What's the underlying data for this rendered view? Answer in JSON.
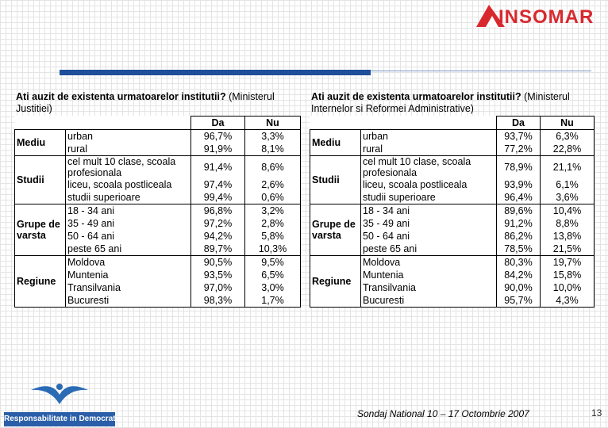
{
  "header": {
    "logo": "INSOMAR"
  },
  "tables": [
    {
      "question": "Ati auzit de existenta urmatoarelor institutii?",
      "institution": "(Ministerul Justitiei)",
      "columns": [
        "Da",
        "Nu"
      ],
      "groups": [
        {
          "name": "Mediu",
          "rows": [
            {
              "label": "urban",
              "values": [
                "96,7%",
                "3,3%"
              ]
            },
            {
              "label": "rural",
              "values": [
                "91,9%",
                "8,1%"
              ]
            }
          ]
        },
        {
          "name": "Studii",
          "rows": [
            {
              "label": "cel mult 10 clase, scoala profesionala",
              "values": [
                "91,4%",
                "8,6%"
              ]
            },
            {
              "label": "liceu, scoala postliceala",
              "values": [
                "97,4%",
                "2,6%"
              ]
            },
            {
              "label": "studii superioare",
              "values": [
                "99,4%",
                "0,6%"
              ]
            }
          ]
        },
        {
          "name": "Grupe de varsta",
          "rows": [
            {
              "label": "18 - 34 ani",
              "values": [
                "96,8%",
                "3,2%"
              ]
            },
            {
              "label": "35 - 49 ani",
              "values": [
                "97,2%",
                "2,8%"
              ]
            },
            {
              "label": "50 - 64 ani",
              "values": [
                "94,2%",
                "5,8%"
              ]
            },
            {
              "label": "peste 65 ani",
              "values": [
                "89,7%",
                "10,3%"
              ]
            }
          ]
        },
        {
          "name": "Regiune",
          "rows": [
            {
              "label": "Moldova",
              "values": [
                "90,5%",
                "9,5%"
              ]
            },
            {
              "label": "Muntenia",
              "values": [
                "93,5%",
                "6,5%"
              ]
            },
            {
              "label": "Transilvania",
              "values": [
                "97,0%",
                "3,0%"
              ]
            },
            {
              "label": "Bucuresti",
              "values": [
                "98,3%",
                "1,7%"
              ]
            }
          ]
        }
      ]
    },
    {
      "question": "Ati auzit de existenta urmatoarelor institutii?",
      "institution": "(Ministerul Internelor si Reformei Administrative)",
      "columns": [
        "Da",
        "Nu"
      ],
      "groups": [
        {
          "name": "Mediu",
          "rows": [
            {
              "label": "urban",
              "values": [
                "93,7%",
                "6,3%"
              ]
            },
            {
              "label": "rural",
              "values": [
                "77,2%",
                "22,8%"
              ]
            }
          ]
        },
        {
          "name": "Studii",
          "rows": [
            {
              "label": "cel mult 10 clase, scoala profesionala",
              "values": [
                "78,9%",
                "21,1%"
              ]
            },
            {
              "label": "liceu, scoala postliceala",
              "values": [
                "93,9%",
                "6,1%"
              ]
            },
            {
              "label": "studii superioare",
              "values": [
                "96,4%",
                "3,6%"
              ]
            }
          ]
        },
        {
          "name": "Grupe de varsta",
          "rows": [
            {
              "label": "18 - 34 ani",
              "values": [
                "89,6%",
                "10,4%"
              ]
            },
            {
              "label": "35 - 49 ani",
              "values": [
                "91,2%",
                "8,8%"
              ]
            },
            {
              "label": "50 - 64 ani",
              "values": [
                "86,2%",
                "13,8%"
              ]
            },
            {
              "label": "peste 65 ani",
              "values": [
                "78,5%",
                "21,5%"
              ]
            }
          ]
        },
        {
          "name": "Regiune",
          "rows": [
            {
              "label": "Moldova",
              "values": [
                "80,3%",
                "19,7%"
              ]
            },
            {
              "label": "Muntenia",
              "values": [
                "84,2%",
                "15,8%"
              ]
            },
            {
              "label": "Transilvania",
              "values": [
                "90,0%",
                "10,0%"
              ]
            },
            {
              "label": "Bucuresti",
              "values": [
                "95,7%",
                "4,3%"
              ]
            }
          ]
        }
      ]
    }
  ],
  "footer": {
    "brand": "Responsabilitate in Democratie",
    "text": "Sondaj National 10 – 17 Octombrie 2007",
    "page": "13"
  }
}
